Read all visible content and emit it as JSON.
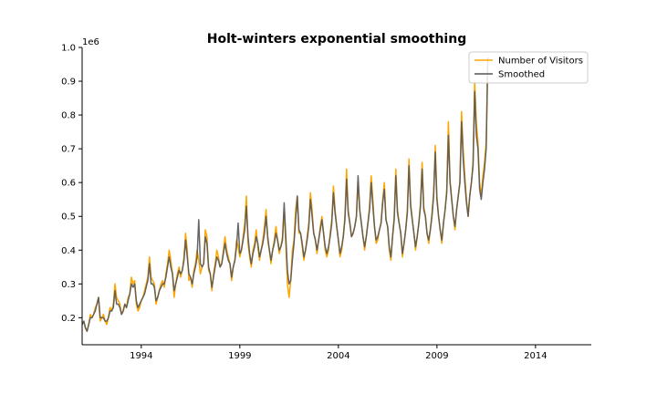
{
  "chart_data": {
    "type": "line",
    "title": "Holt-winters exponential smoothing",
    "xlabel": "",
    "ylabel": "",
    "y_offset_label": "1e6",
    "xlim": [
      1991.0,
      2016.83
    ],
    "ylim": [
      0.12,
      1.0
    ],
    "x_ticks": [
      1994,
      1999,
      2004,
      2009,
      2014
    ],
    "x_tick_labels": [
      "1994",
      "1999",
      "2004",
      "2009",
      "2014"
    ],
    "y_ticks": [
      0.2,
      0.3,
      0.4,
      0.5,
      0.6,
      0.7,
      0.8,
      0.9,
      1.0
    ],
    "y_tick_labels": [
      "0.2",
      "0.3",
      "0.4",
      "0.5",
      "0.6",
      "0.7",
      "0.8",
      "0.9",
      "1.0"
    ],
    "legend_position": "top-right",
    "grid": false,
    "x_start_year": 1991.0,
    "x_step_years": 0.08333,
    "series": [
      {
        "name": "Number of Visitors",
        "color": "#ffa500",
        "values": [
          0.18,
          0.19,
          0.17,
          0.16,
          0.18,
          0.21,
          0.2,
          0.21,
          0.23,
          0.24,
          0.26,
          0.19,
          0.2,
          0.21,
          0.19,
          0.18,
          0.2,
          0.23,
          0.22,
          0.24,
          0.3,
          0.26,
          0.25,
          0.24,
          0.21,
          0.22,
          0.24,
          0.23,
          0.26,
          0.27,
          0.32,
          0.3,
          0.31,
          0.24,
          0.22,
          0.23,
          0.25,
          0.26,
          0.28,
          0.3,
          0.32,
          0.38,
          0.32,
          0.31,
          0.3,
          0.24,
          0.26,
          0.28,
          0.3,
          0.31,
          0.29,
          0.33,
          0.36,
          0.4,
          0.37,
          0.33,
          0.26,
          0.3,
          0.33,
          0.35,
          0.32,
          0.34,
          0.38,
          0.45,
          0.4,
          0.31,
          0.32,
          0.29,
          0.34,
          0.36,
          0.4,
          0.37,
          0.33,
          0.35,
          0.36,
          0.46,
          0.44,
          0.34,
          0.33,
          0.28,
          0.33,
          0.36,
          0.4,
          0.38,
          0.35,
          0.36,
          0.4,
          0.44,
          0.4,
          0.38,
          0.36,
          0.31,
          0.35,
          0.37,
          0.43,
          0.41,
          0.38,
          0.4,
          0.44,
          0.48,
          0.56,
          0.42,
          0.38,
          0.35,
          0.4,
          0.42,
          0.46,
          0.41,
          0.37,
          0.4,
          0.43,
          0.47,
          0.52,
          0.43,
          0.4,
          0.36,
          0.4,
          0.43,
          0.47,
          0.43,
          0.39,
          0.41,
          0.44,
          0.51,
          0.42,
          0.3,
          0.26,
          0.31,
          0.4,
          0.43,
          0.52,
          0.56,
          0.45,
          0.45,
          0.41,
          0.37,
          0.4,
          0.44,
          0.48,
          0.57,
          0.52,
          0.45,
          0.43,
          0.39,
          0.43,
          0.47,
          0.5,
          0.45,
          0.4,
          0.38,
          0.4,
          0.45,
          0.49,
          0.59,
          0.52,
          0.47,
          0.43,
          0.38,
          0.4,
          0.44,
          0.5,
          0.64,
          0.52,
          0.48,
          0.44,
          0.45,
          0.47,
          0.5,
          0.6,
          0.52,
          0.48,
          0.44,
          0.4,
          0.44,
          0.48,
          0.53,
          0.62,
          0.55,
          0.47,
          0.42,
          0.43,
          0.46,
          0.48,
          0.55,
          0.6,
          0.49,
          0.47,
          0.4,
          0.37,
          0.44,
          0.5,
          0.64,
          0.52,
          0.48,
          0.45,
          0.38,
          0.42,
          0.46,
          0.52,
          0.67,
          0.54,
          0.49,
          0.45,
          0.4,
          0.44,
          0.48,
          0.54,
          0.66,
          0.53,
          0.5,
          0.45,
          0.42,
          0.46,
          0.51,
          0.57,
          0.71,
          0.56,
          0.5,
          0.46,
          0.42,
          0.48,
          0.52,
          0.58,
          0.78,
          0.61,
          0.55,
          0.5,
          0.46,
          0.52,
          0.56,
          0.6,
          0.81,
          0.7,
          0.62,
          0.55,
          0.5,
          0.56,
          0.6,
          0.66,
          0.9,
          0.78,
          0.72,
          0.6,
          0.56,
          0.62,
          0.66,
          0.72,
          0.97
        ]
      },
      {
        "name": "Smoothed",
        "color": "#555555",
        "values": [
          0.18,
          0.19,
          0.17,
          0.16,
          0.18,
          0.2,
          0.2,
          0.21,
          0.22,
          0.24,
          0.26,
          0.2,
          0.2,
          0.2,
          0.19,
          0.19,
          0.2,
          0.22,
          0.22,
          0.23,
          0.28,
          0.24,
          0.24,
          0.23,
          0.21,
          0.22,
          0.24,
          0.23,
          0.25,
          0.27,
          0.3,
          0.29,
          0.3,
          0.25,
          0.23,
          0.24,
          0.25,
          0.26,
          0.27,
          0.29,
          0.31,
          0.36,
          0.3,
          0.3,
          0.29,
          0.25,
          0.26,
          0.28,
          0.29,
          0.3,
          0.3,
          0.32,
          0.35,
          0.38,
          0.35,
          0.33,
          0.28,
          0.3,
          0.32,
          0.34,
          0.33,
          0.34,
          0.37,
          0.43,
          0.38,
          0.33,
          0.32,
          0.3,
          0.33,
          0.35,
          0.38,
          0.49,
          0.36,
          0.35,
          0.36,
          0.44,
          0.42,
          0.35,
          0.33,
          0.29,
          0.32,
          0.35,
          0.38,
          0.37,
          0.35,
          0.36,
          0.39,
          0.42,
          0.39,
          0.37,
          0.36,
          0.32,
          0.35,
          0.37,
          0.41,
          0.48,
          0.39,
          0.4,
          0.43,
          0.46,
          0.53,
          0.44,
          0.39,
          0.36,
          0.39,
          0.41,
          0.44,
          0.42,
          0.38,
          0.4,
          0.42,
          0.45,
          0.5,
          0.44,
          0.4,
          0.37,
          0.4,
          0.42,
          0.45,
          0.43,
          0.4,
          0.41,
          0.43,
          0.54,
          0.44,
          0.34,
          0.3,
          0.31,
          0.37,
          0.42,
          0.49,
          0.56,
          0.46,
          0.45,
          0.42,
          0.38,
          0.4,
          0.43,
          0.47,
          0.55,
          0.5,
          0.45,
          0.43,
          0.4,
          0.43,
          0.46,
          0.49,
          0.45,
          0.41,
          0.39,
          0.41,
          0.44,
          0.48,
          0.57,
          0.51,
          0.47,
          0.43,
          0.39,
          0.41,
          0.44,
          0.49,
          0.61,
          0.51,
          0.48,
          0.44,
          0.45,
          0.47,
          0.5,
          0.62,
          0.52,
          0.48,
          0.44,
          0.41,
          0.44,
          0.48,
          0.52,
          0.6,
          0.53,
          0.47,
          0.43,
          0.44,
          0.46,
          0.48,
          0.54,
          0.58,
          0.49,
          0.47,
          0.41,
          0.38,
          0.44,
          0.49,
          0.62,
          0.51,
          0.48,
          0.45,
          0.39,
          0.42,
          0.46,
          0.51,
          0.65,
          0.53,
          0.49,
          0.45,
          0.41,
          0.44,
          0.48,
          0.53,
          0.64,
          0.52,
          0.5,
          0.45,
          0.43,
          0.46,
          0.5,
          0.56,
          0.69,
          0.55,
          0.5,
          0.46,
          0.43,
          0.48,
          0.52,
          0.57,
          0.74,
          0.6,
          0.55,
          0.5,
          0.47,
          0.52,
          0.56,
          0.6,
          0.78,
          0.67,
          0.6,
          0.54,
          0.5,
          0.56,
          0.6,
          0.65,
          0.87,
          0.74,
          0.7,
          0.58,
          0.55,
          0.6,
          0.64,
          0.7,
          0.97
        ]
      }
    ]
  }
}
